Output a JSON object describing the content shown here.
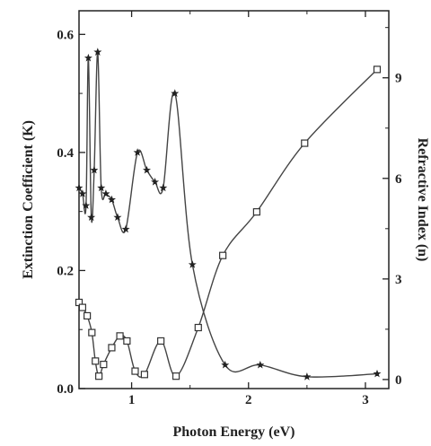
{
  "chart_data": {
    "type": "line",
    "xlabel": "Photon Energy (eV)",
    "ylabel_left": "Extinction Coefficient (K)",
    "ylabel_right": "Refractive Index (n)",
    "xlim": [
      0.55,
      3.2
    ],
    "ylim_left": [
      0,
      0.64
    ],
    "ylim_right": [
      -0.27,
      11.0
    ],
    "x_ticks": [
      1,
      2,
      3
    ],
    "y_left_ticks": [
      0.0,
      0.2,
      0.4,
      0.6
    ],
    "y_left_tick_labels": [
      "0.0",
      "0.2",
      "0.4",
      "0.6"
    ],
    "y_right_ticks": [
      0,
      3,
      6,
      9
    ],
    "y_right_tick_labels": [
      "0",
      "3",
      "6",
      "9"
    ],
    "grid": false,
    "series": [
      {
        "axis": "left",
        "marker": "filled-star",
        "x": [
          0.55,
          0.58,
          0.61,
          0.63,
          0.655,
          0.68,
          0.71,
          0.74,
          0.78,
          0.83,
          0.88,
          0.95,
          1.05,
          1.13,
          1.2,
          1.27,
          1.37,
          1.52,
          1.8,
          2.1,
          2.5,
          3.1
        ],
        "y": [
          0.34,
          0.33,
          0.31,
          0.56,
          0.29,
          0.37,
          0.57,
          0.34,
          0.33,
          0.32,
          0.29,
          0.27,
          0.4,
          0.37,
          0.35,
          0.34,
          0.5,
          0.21,
          0.04,
          0.04,
          0.02,
          0.025
        ]
      },
      {
        "axis": "right",
        "marker": "open-square",
        "x": [
          0.55,
          0.58,
          0.62,
          0.66,
          0.69,
          0.72,
          0.76,
          0.83,
          0.9,
          0.96,
          1.03,
          1.11,
          1.25,
          1.38,
          1.57,
          1.78,
          2.07,
          2.48,
          3.1
        ],
        "y": [
          2.3,
          2.15,
          1.9,
          1.4,
          0.55,
          0.1,
          0.45,
          0.95,
          1.3,
          1.15,
          0.25,
          0.15,
          1.15,
          0.1,
          1.55,
          3.7,
          5.0,
          7.05,
          9.25
        ]
      }
    ]
  }
}
